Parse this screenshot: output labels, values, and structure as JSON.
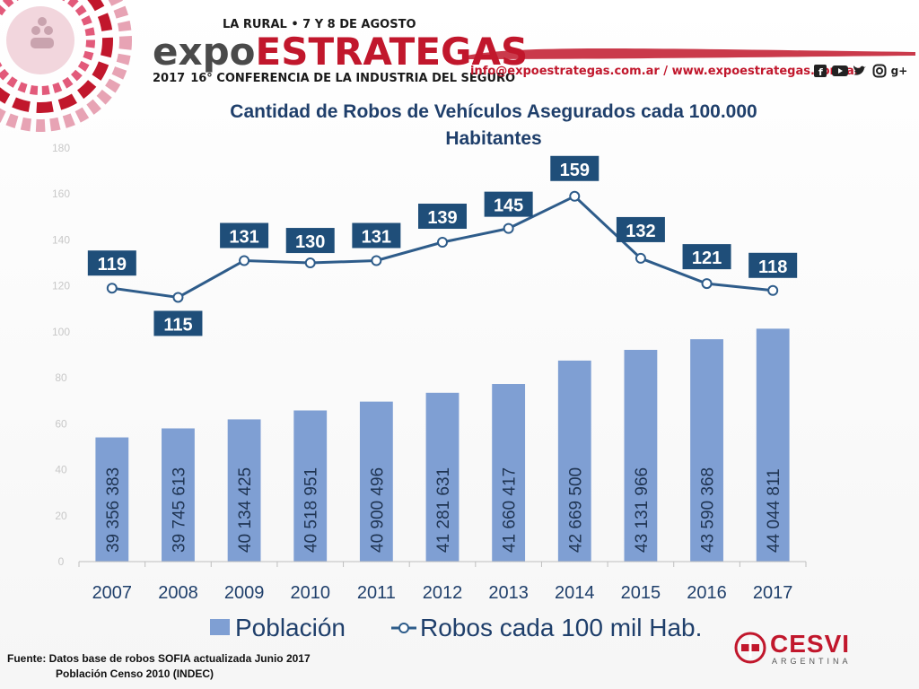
{
  "header": {
    "event_top": "LA RURAL • 7 Y 8 DE AGOSTO",
    "logo_part1": "expo",
    "logo_part2": "ESTRATEGAS",
    "year": "2017",
    "conference": "16° CONFERENCIA DE LA INDUSTRIA DEL SEGURO",
    "contact": "info@expoestrategas.com.ar / www.expoestrategas.com.ar",
    "social_icons": [
      "facebook-icon",
      "youtube-icon",
      "twitter-icon",
      "instagram-icon",
      "google-plus-icon"
    ],
    "gplus_text": "g+"
  },
  "footer": {
    "source_line1": "Fuente: Datos base de robos SOFIA actualizada Junio 2017",
    "source_line2": "Población Censo 2010 (INDEC)",
    "brand_name": "CESVI",
    "brand_sub": "ARGENTINA"
  },
  "colors": {
    "accent_red": "#c1172c",
    "title_blue": "#1f3f6b",
    "bar_blue": "#7f9fd3",
    "line_blue": "#2e5c8a",
    "label_bg": "#1f4e79"
  },
  "chart_data": {
    "type": "bar",
    "title": "Cantidad de Robos de Vehículos Asegurados cada 100.000 Habitantes",
    "categories": [
      "2007",
      "2008",
      "2009",
      "2010",
      "2011",
      "2012",
      "2013",
      "2014",
      "2015",
      "2016",
      "2017"
    ],
    "ylim": [
      0,
      180
    ],
    "yticks": [
      "0",
      "20",
      "40",
      "60",
      "80",
      "100",
      "120",
      "140",
      "160",
      "180"
    ],
    "grid": false,
    "legend_position": "bottom",
    "series": [
      {
        "name": "Población",
        "type": "bar",
        "values": [
          39356383,
          39745613,
          40134425,
          40518951,
          40900496,
          41281631,
          41660417,
          42669500,
          43131966,
          43590368,
          44044811
        ],
        "labels": [
          "39 356 383",
          "39 745 613",
          "40 134 425",
          "40 518 951",
          "40 900 496",
          "41 281 631",
          "41 660 417",
          "42 669 500",
          "43 131 966",
          "43 590 368",
          "44 044 811"
        ]
      },
      {
        "name": "Robos cada 100 mil Hab.",
        "type": "line",
        "values": [
          119,
          115,
          131,
          130,
          131,
          139,
          145,
          159,
          132,
          121,
          118
        ],
        "labels": [
          "119",
          "115",
          "131",
          "130",
          "131",
          "139",
          "145",
          "159",
          "132",
          "121",
          "118"
        ]
      }
    ]
  }
}
